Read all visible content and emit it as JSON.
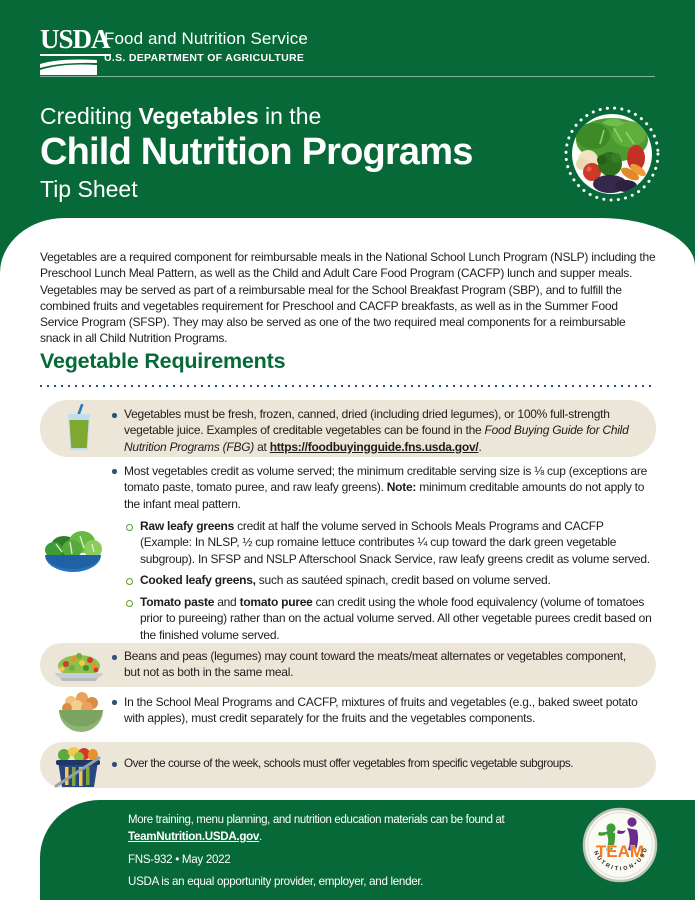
{
  "colors": {
    "brand_green": "#076938",
    "panel_beige": "#EBE6D8",
    "dot_navy": "#31517B",
    "sub_bullet_green": "#5A9E33",
    "team_orange": "#F4791F"
  },
  "icons": {
    "usda_swoosh": "usda-swoosh-icon",
    "box1": "juice-glass-icon",
    "volume": "salad-bowl-icon",
    "beans": "beans-plate-icon",
    "mixtures": "fruit-veg-bowl-icon",
    "subgroups": "grocery-basket-icon",
    "header_badge": "vegetables-photo",
    "footer_logo": "team-nutrition-logo"
  },
  "header": {
    "usda_wordmark": "USDA",
    "agency_name": "Food and Nutrition Service",
    "department_name": "U.S. DEPARTMENT OF AGRICULTURE",
    "title_line": [
      {
        "t": "Crediting "
      },
      {
        "t": "Vegetables",
        "b": true
      },
      {
        "t": " in the"
      }
    ],
    "title_main": "Child Nutrition Programs",
    "title_sub": "Tip Sheet"
  },
  "intro": {
    "text": "Vegetables are a required component for reimbursable meals in the National School Lunch Program (NSLP) including the Preschool Lunch Meal Pattern, as well as the Child and Adult Care Food Program (CACFP) lunch and supper meals. Vegetables may be served as part of a reimbursable meal for the School Breakfast Program (SBP), and to fulfill the combined fruits and vegetables requirement for Preschool and CACFP breakfasts, as well as in the Summer Food Service Program (SFSP). They may also be served as one of the two required meal components for a reimbursable snack in all Child Nutrition Programs."
  },
  "requirements": {
    "heading": "Vegetable Requirements",
    "juice_item_pre": [
      {
        "t": "Vegetables must be fresh, frozen, canned, dried (including dried legumes), or 100% full-strength vegetable juice. Examples of creditable vegetables can be found in the "
      },
      {
        "t": "Food Buying Guide for Child Nutrition Programs (FBG)",
        "i": true
      },
      {
        "t": " at "
      }
    ],
    "juice_link": "https://foodbuyingguide.fns.usda.gov/",
    "juice_item_post": ".",
    "volume_item": [
      {
        "t": "Most vegetables credit as volume served; the minimum creditable serving size is ⅛ cup (exceptions are tomato paste, tomato puree, and raw leafy greens). "
      },
      {
        "t": "Note:",
        "b": true
      },
      {
        "t": " minimum creditable amounts do not apply to the infant meal pattern."
      }
    ],
    "raw_leafy_sub": [
      {
        "t": "Raw leafy greens",
        "b": true
      },
      {
        "t": " credit at half the volume served in Schools Meals Programs and CACFP (Example: In NLSP, ½ cup romaine lettuce contributes ¼ cup toward the dark green vegetable subgroup). In SFSP and NSLP Afterschool Snack Service, raw leafy greens credit as volume served."
      }
    ],
    "cooked_leafy_sub": [
      {
        "t": "Cooked leafy greens,",
        "b": true
      },
      {
        "t": " such as sautéed spinach, credit based on volume served."
      }
    ],
    "tomato_sub": [
      {
        "t": "Tomato paste",
        "b": true
      },
      {
        "t": " and "
      },
      {
        "t": "tomato puree",
        "b": true
      },
      {
        "t": " can credit using the whole food equivalency (volume of tomatoes prior to pureeing) rather than on the actual volume served. All other vegetable purees credit based on the finished volume served."
      }
    ],
    "beans_item": [
      {
        "t": "Beans and peas (legumes) may count toward the meats/meat alternates or vegetables component, but not as both in the same meal."
      }
    ],
    "mixtures_item": [
      {
        "t": "In the School Meal Programs and CACFP, mixtures of fruits and vegetables (e.g., baked sweet potato with apples), must credit separately for the fruits and the vegetables components."
      }
    ],
    "subgroups_item": [
      {
        "t": "Over the course of the week, schools must offer vegetables from specific vegetable subgroups."
      }
    ]
  },
  "footer": {
    "note": "More training, menu planning, and nutrition education materials can be found at",
    "link": "TeamNutrition.USDA.gov",
    "link_suffix": ".",
    "doc_code": "FNS-932 • May 2022",
    "eeo": "USDA is an equal opportunity provider, employer, and lender.",
    "logo": {
      "team": "TEAM",
      "arc": "NUTRITION•USDA"
    }
  }
}
